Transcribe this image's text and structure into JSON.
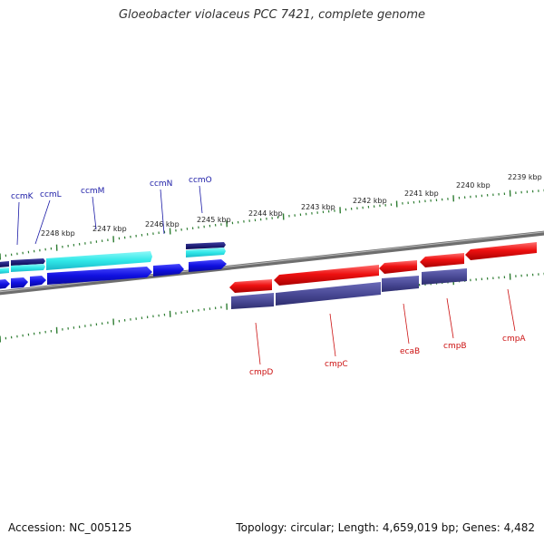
{
  "title": "Gloeobacter violaceus PCC 7421, complete genome",
  "accession_text": "Accession: NC_005125",
  "summary_text": "Topology: circular; Length: 4,659,019 bp; Genes: 4,482",
  "colors": {
    "backbone": "#7a7a7a",
    "tick": "#2e7d32",
    "forward_label": "#1a1aa6",
    "reverse_label": "#cc1111",
    "forward_gene": "#1010e0",
    "forward_cyan": "#30e8e8",
    "forward_navy": "#101070",
    "reverse_gene": "#ee1111",
    "reverse_purple": "#4a4a96"
  },
  "scale_labels": [
    {
      "text": "2239 kbp",
      "kbp": 2239
    },
    {
      "text": "2240 kbp",
      "kbp": 2240
    },
    {
      "text": "2241 kbp",
      "kbp": 2241
    },
    {
      "text": "2242 kbp",
      "kbp": 2242
    },
    {
      "text": "2243 kbp",
      "kbp": 2243
    },
    {
      "text": "2244 kbp",
      "kbp": 2244
    },
    {
      "text": "2245 kbp",
      "kbp": 2245
    },
    {
      "text": "2246 kbp",
      "kbp": 2246
    },
    {
      "text": "2247 kbp",
      "kbp": 2247
    },
    {
      "text": "2248 kbp",
      "kbp": 2248
    }
  ],
  "forward_genes": [
    {
      "name": "ccmK"
    },
    {
      "name": "ccmL"
    },
    {
      "name": "ccmM"
    },
    {
      "name": "ccmN"
    },
    {
      "name": "ccmO"
    }
  ],
  "reverse_genes": [
    {
      "name": "cmpD"
    },
    {
      "name": "cmpC"
    },
    {
      "name": "ecaB"
    },
    {
      "name": "cmpB"
    },
    {
      "name": "cmpA"
    }
  ]
}
